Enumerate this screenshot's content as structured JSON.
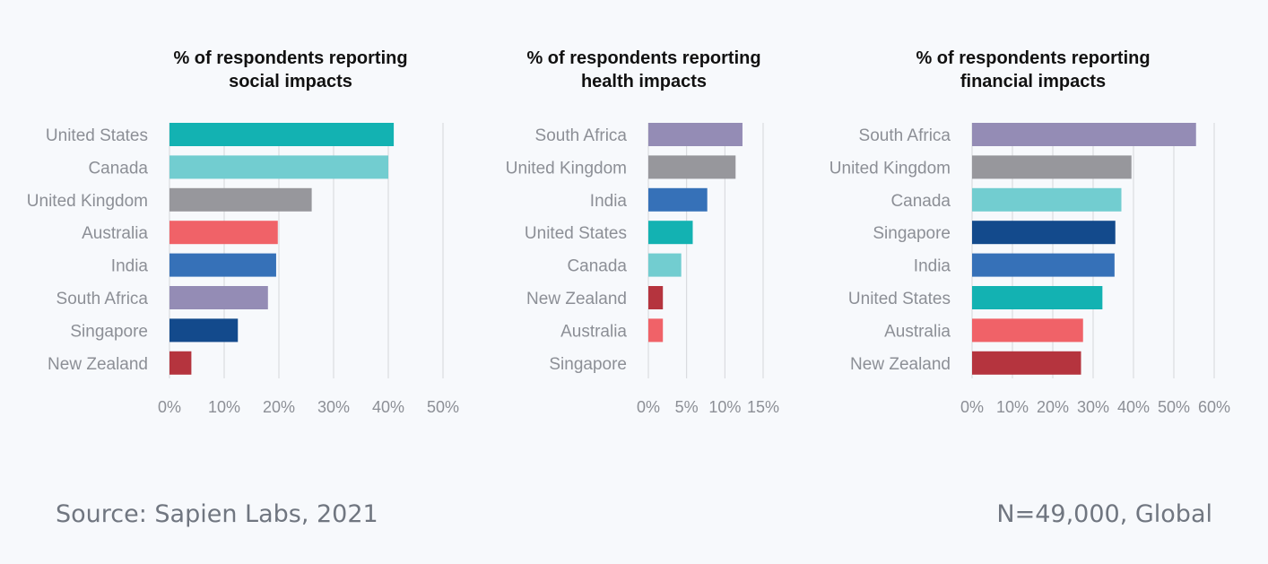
{
  "chart_data": [
    {
      "type": "bar",
      "orientation": "horizontal",
      "title_lines": [
        "% of respondents reporting",
        "social impacts"
      ],
      "categories": [
        "United States",
        "Canada",
        "United Kingdom",
        "Australia",
        "India",
        "South Africa",
        "Singapore",
        "New Zealand"
      ],
      "values": [
        41,
        40,
        26,
        19.8,
        19.5,
        18,
        12.5,
        4
      ],
      "colors": [
        "#13b2b2",
        "#72cdd0",
        "#97979c",
        "#f06268",
        "#3671b8",
        "#948cb5",
        "#134a8c",
        "#b5343e"
      ],
      "xlim": [
        0,
        50
      ],
      "xticks": [
        0,
        10,
        20,
        30,
        40,
        50
      ],
      "xtick_labels": [
        "0%",
        "10%",
        "20%",
        "30%",
        "40%",
        "50%"
      ],
      "grid": true
    },
    {
      "type": "bar",
      "orientation": "horizontal",
      "title_lines": [
        "% of respondents reporting",
        "health impacts"
      ],
      "categories": [
        "South Africa",
        "United Kingdom",
        "India",
        "United States",
        "Canada",
        "New Zealand",
        "Australia",
        "Singapore"
      ],
      "values": [
        12.3,
        11.4,
        7.7,
        5.8,
        4.3,
        1.9,
        1.9,
        0
      ],
      "colors": [
        "#948cb5",
        "#97979c",
        "#3671b8",
        "#13b2b2",
        "#72cdd0",
        "#b5343e",
        "#f06268",
        "#134a8c"
      ],
      "xlim": [
        0,
        15
      ],
      "xticks": [
        0,
        5,
        10,
        15
      ],
      "xtick_labels": [
        "0%",
        "5%",
        "10%",
        "15%"
      ],
      "grid": true
    },
    {
      "type": "bar",
      "orientation": "horizontal",
      "title_lines": [
        "% of respondents reporting",
        "financial impacts"
      ],
      "categories": [
        "South Africa",
        "United Kingdom",
        "Canada",
        "Singapore",
        "India",
        "United States",
        "Australia",
        "New Zealand"
      ],
      "values": [
        55.5,
        39.5,
        37,
        35.5,
        35.3,
        32.3,
        27.5,
        27
      ],
      "colors": [
        "#948cb5",
        "#97979c",
        "#72cdd0",
        "#134a8c",
        "#3671b8",
        "#13b2b2",
        "#f06268",
        "#b5343e"
      ],
      "xlim": [
        0,
        60
      ],
      "xticks": [
        0,
        10,
        20,
        30,
        40,
        50,
        60
      ],
      "xtick_labels": [
        "0%",
        "10%",
        "20%",
        "30%",
        "40%",
        "50%",
        "60%"
      ],
      "grid": true
    }
  ],
  "footer": {
    "source": "Source: Sapien Labs, 2021",
    "sample": "N=49,000, Global"
  }
}
